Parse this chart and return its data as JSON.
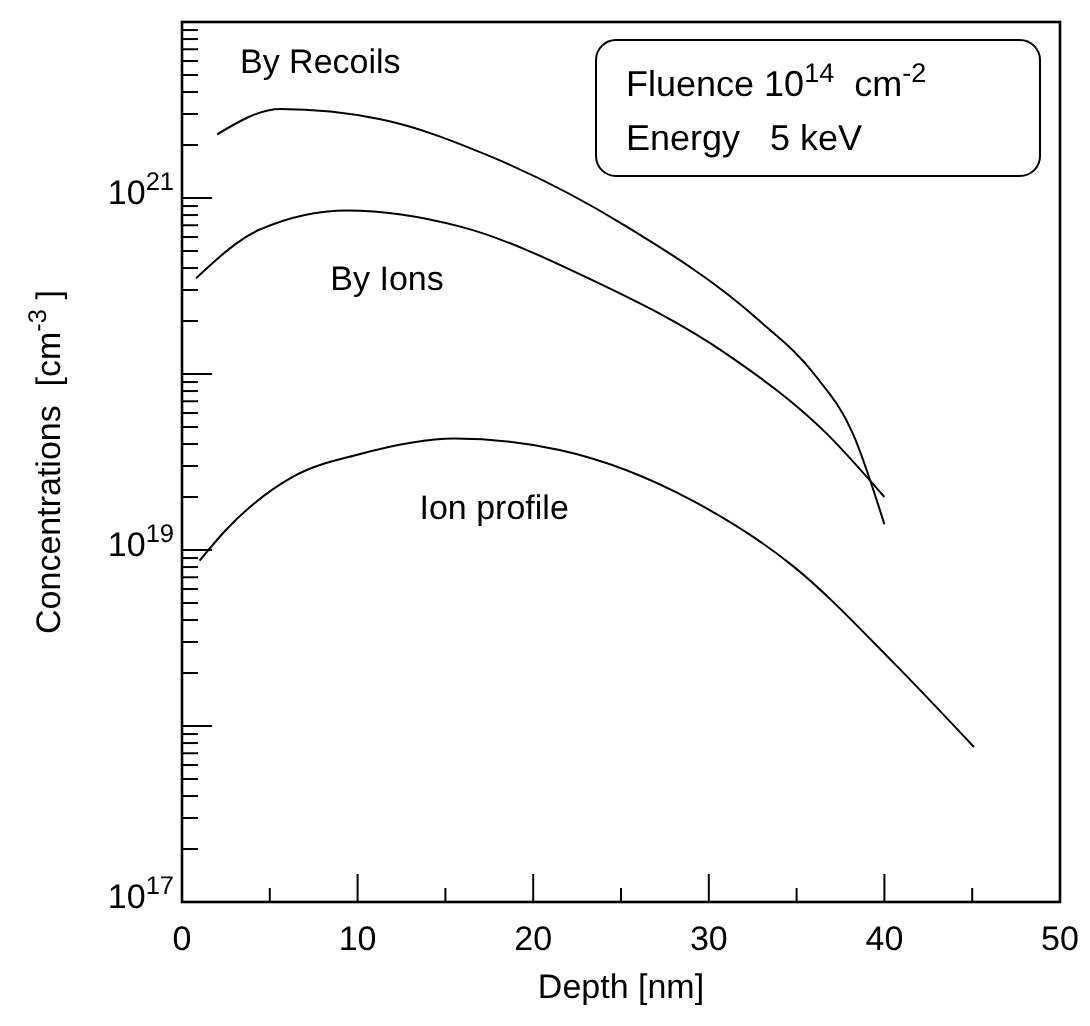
{
  "chart_data": {
    "type": "line",
    "xlabel": "Depth [nm]",
    "ylabel": "Concentrations  [cm$^{-3}$ ]",
    "log": "y",
    "grid": false,
    "marker": "none",
    "line_style": "solid",
    "xlim": [
      0,
      50
    ],
    "ylim": [
      1e+17,
      1e+22
    ],
    "xticks": [
      0,
      {
        "value": 5,
        "label": null
      },
      10,
      {
        "value": 15,
        "label": null
      },
      20,
      {
        "value": 25,
        "label": null
      },
      30,
      {
        "value": 35,
        "label": null
      },
      40,
      {
        "value": 45,
        "label": null
      },
      50
    ],
    "yticks": [
      {
        "value": 1e+17,
        "label": "10$^{17}$"
      },
      {
        "value": 2e+17,
        "label": null
      },
      {
        "value": 3e+17,
        "label": null
      },
      {
        "value": 4e+17,
        "label": null
      },
      {
        "value": 5e+17,
        "label": null
      },
      {
        "value": 6e+17,
        "label": null
      },
      {
        "value": 7e+17,
        "label": null
      },
      {
        "value": 8e+17,
        "label": null
      },
      {
        "value": 9e+17,
        "label": null
      },
      {
        "value": 1e+18,
        "label": null
      },
      {
        "value": 2e+18,
        "label": null
      },
      {
        "value": 3e+18,
        "label": null
      },
      {
        "value": 4e+18,
        "label": null
      },
      {
        "value": 5e+18,
        "label": null
      },
      {
        "value": 6e+18,
        "label": null
      },
      {
        "value": 7e+18,
        "label": null
      },
      {
        "value": 8e+18,
        "label": null
      },
      {
        "value": 9e+18,
        "label": null
      },
      {
        "value": 1e+19,
        "label": "10$^{19}$"
      },
      {
        "value": 2e+19,
        "label": null
      },
      {
        "value": 3e+19,
        "label": null
      },
      {
        "value": 4e+19,
        "label": null
      },
      {
        "value": 5e+19,
        "label": null
      },
      {
        "value": 6e+19,
        "label": null
      },
      {
        "value": 7e+19,
        "label": null
      },
      {
        "value": 8e+19,
        "label": null
      },
      {
        "value": 9e+19,
        "label": null
      },
      {
        "value": 1e+20,
        "label": null
      },
      {
        "value": 2e+20,
        "label": null
      },
      {
        "value": 3e+20,
        "label": null
      },
      {
        "value": 4e+20,
        "label": null
      },
      {
        "value": 5e+20,
        "label": null
      },
      {
        "value": 6e+20,
        "label": null
      },
      {
        "value": 7e+20,
        "label": null
      },
      {
        "value": 8e+20,
        "label": null
      },
      {
        "value": 9e+20,
        "label": null
      },
      {
        "value": 1e+21,
        "label": "10$^{21}$"
      },
      {
        "value": 2e+21,
        "label": null
      },
      {
        "value": 3e+21,
        "label": null
      },
      {
        "value": 4e+21,
        "label": null
      },
      {
        "value": 5e+21,
        "label": null
      },
      {
        "value": 6e+21,
        "label": null
      },
      {
        "value": 7e+21,
        "label": null
      },
      {
        "value": 8e+21,
        "label": null
      },
      {
        "value": 9e+21,
        "label": null
      }
    ],
    "annotations": [
      "Fluence 10$^{14}$  cm$^{-2}$",
      "Energy   5 keV"
    ],
    "series": [
      {
        "name": "By Recoils",
        "color": "#000000",
        "x": [
          2,
          5.6,
          11.3,
          17.7,
          25.3,
          32.9,
          36,
          38.2,
          40
        ],
        "values": [
          2.3e+21,
          3.2e+21,
          2.8e+21,
          1.7e+21,
          6.9e+20,
          2e+20,
          1e+20,
          4.6e+19,
          1.4e+19
        ]
      },
      {
        "name": "By Ions",
        "color": "#000000",
        "x": [
          0.8,
          4.4,
          9.4,
          15.8,
          23.4,
          31,
          36.7,
          40
        ],
        "values": [
          3.5e+20,
          6.6e+20,
          8.5e+20,
          6.9e+20,
          3.4e+20,
          1.3e+20,
          4.6e+19,
          2e+19
        ]
      },
      {
        "name": "Ion profile",
        "color": "#000000",
        "x": [
          1,
          2.5,
          6.3,
          10.1,
          15.5,
          21.5,
          29.1,
          34.8,
          40.5,
          45.1
        ],
        "values": [
          8.7e+18,
          1.3e+19,
          2.6e+19,
          3.5e+19,
          4.3e+19,
          3.7e+19,
          1.9e+19,
          8.1e+18,
          2.3e+18,
          7.6e+17
        ]
      }
    ]
  }
}
